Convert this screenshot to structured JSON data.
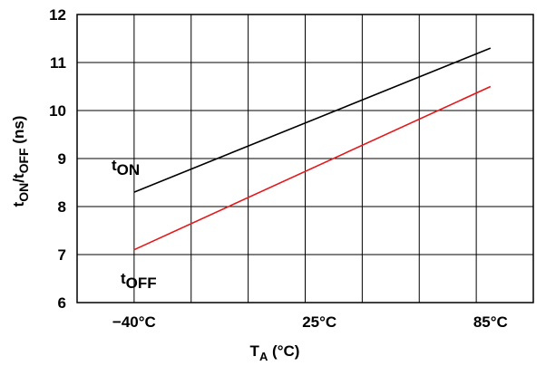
{
  "chart_data": {
    "type": "line",
    "x_ticks": [
      "−40°C",
      "25°C",
      "85°C"
    ],
    "x_values": [
      -40,
      25,
      85
    ],
    "xlim": [
      -60,
      100
    ],
    "ylim": [
      6,
      12
    ],
    "y_ticks": [
      6,
      7,
      8,
      9,
      10,
      11,
      12
    ],
    "grid": true,
    "xlabel": {
      "main": "T",
      "sub": "A",
      "rest": " (°C)"
    },
    "ylabel": {
      "parts": [
        {
          "t": "t",
          "sub": false
        },
        {
          "t": "ON",
          "sub": true
        },
        {
          "t": "/t",
          "sub": false
        },
        {
          "t": "OFF",
          "sub": true
        },
        {
          "t": " (ns)",
          "sub": false
        }
      ]
    },
    "series": [
      {
        "name_main": "t",
        "name_sub": "ON",
        "color": "#000000",
        "x": [
          -40,
          85
        ],
        "y": [
          8.3,
          11.3
        ]
      },
      {
        "name_main": "t",
        "name_sub": "OFF",
        "color": "#e31a1c",
        "x": [
          -40,
          85
        ],
        "y": [
          7.1,
          10.5
        ]
      }
    ]
  }
}
